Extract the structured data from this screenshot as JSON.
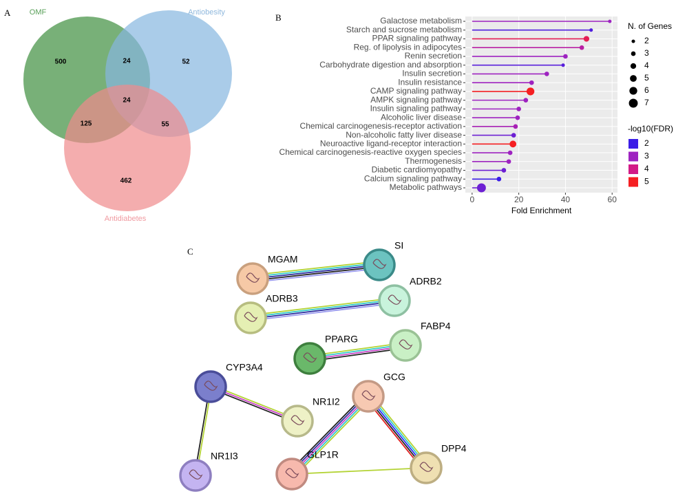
{
  "panels": [
    "A",
    "B",
    "C"
  ],
  "venn": {
    "sets": [
      "OMF",
      "Antiobesity",
      "Antidiabetes"
    ],
    "counts": {
      "omf_only": "500",
      "omf_obesity": "24",
      "obesity_only": "52",
      "all": "24",
      "omf_diabetes": "125",
      "obesity_diabetes": "55",
      "diabetes_only": "462"
    }
  },
  "chart_data": {
    "type": "lollipop",
    "categories": [
      "Galactose metabolism",
      "Starch and sucrose metabolism",
      "PPAR signaling pathway",
      "Reg. of lipolysis in adipocytes",
      "Renin secretion",
      "Carbohydrate digestion and absorption",
      "Insulin secretion",
      "Insulin resistance",
      "CAMP signaling pathway",
      "AMPK signaling pathway",
      "Insulin signaling pathway",
      "Alcoholic liver disease",
      "Chemical carcinogenesis-receptor activation",
      "Non-alcoholic fatty liver disease",
      "Neuroactive ligand-receptor interaction",
      "Chemical carcinogenesis-reactive oxygen species",
      "Thermogenesis",
      "Diabetic cardiomyopathy",
      "Calcium signaling pathway",
      "Metabolic pathways"
    ],
    "values": [
      59,
      51,
      49,
      47,
      40,
      39,
      32,
      25.5,
      25,
      23,
      20,
      19.5,
      18.6,
      17.8,
      17.5,
      16.3,
      15.7,
      13.6,
      11.5,
      4
    ],
    "genes": [
      2,
      2,
      4,
      3,
      3,
      2,
      3,
      3,
      6,
      3,
      3,
      3,
      3,
      3,
      5,
      3,
      3,
      3,
      3,
      7
    ],
    "fdr": [
      3,
      2.2,
      4.5,
      3.5,
      3,
      2.3,
      3,
      3,
      5,
      3,
      3,
      3,
      3.2,
      2.5,
      5,
      3,
      3,
      2.5,
      2,
      2.5
    ],
    "xlim": [
      -2.9,
      62.3
    ],
    "xticks": [
      0,
      20,
      40,
      60
    ],
    "xlabel": "Fold Enrichment",
    "size_legend": {
      "title": "N. of Genes",
      "values": [
        2,
        3,
        4,
        5,
        6,
        7
      ]
    },
    "color_legend": {
      "title": "-log10(FDR)",
      "values": [
        2,
        3,
        4,
        5
      ],
      "colors": [
        "#3b1de6",
        "#9e23c0",
        "#d21b87",
        "#f51f22"
      ]
    }
  },
  "network": {
    "nodes": [
      "MGAM",
      "SI",
      "ADRB3",
      "ADRB2",
      "PPARG",
      "FABP4",
      "CYP3A4",
      "NR1I2",
      "GCG",
      "NR1I3",
      "GLP1R",
      "DPP4"
    ]
  }
}
